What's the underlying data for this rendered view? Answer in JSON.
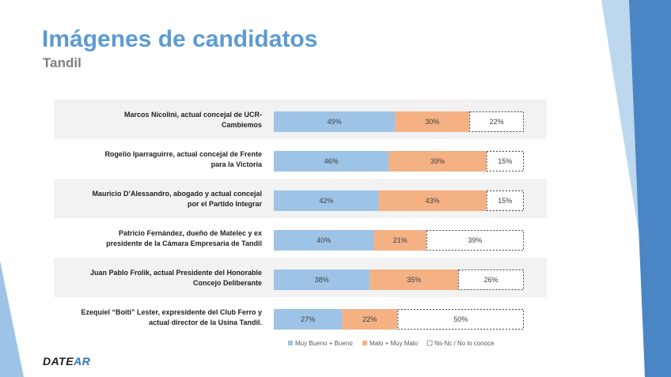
{
  "slide": {
    "title": "Imágenes de candidatos",
    "subtitle": "Tandil",
    "logo_main": "DATE",
    "logo_accent": "AR"
  },
  "colors": {
    "good": "#9dc3e6",
    "bad": "#f4b183",
    "nsnc_border": "#404040",
    "row_bg": "#f2f2f2",
    "title": "#5b9bd5",
    "deco_light": "#bdd7ee",
    "deco_mid": "#9dc3e6",
    "deco_dark": "#2e75b6"
  },
  "chart_data": {
    "type": "bar",
    "orientation": "horizontal",
    "stacked": true,
    "title": "Imágenes de candidatos",
    "subtitle": "Tandil",
    "categories": [
      [
        "Marcos Nicolini, actual concejal de UCR-",
        "Cambiemos"
      ],
      [
        "Rogelio Iparraguirre, actual concejal de Frente",
        "para la Victoria"
      ],
      [
        "Mauricio D’Alessandro, abogado y actual concejal",
        "por el Partido Integrar"
      ],
      [
        "Patricio Fernández, dueño de Matelec y ex",
        "presidente de la Cámara Empresaria de Tandil"
      ],
      [
        "Juan Pablo Frolik, actual Presidente del Honorable",
        "Concejo Deliberante"
      ],
      [
        "Ezequiel “Boiti” Lester, expresidente del Club Ferro y",
        "actual director de la Usina Tandil."
      ]
    ],
    "series": [
      {
        "name": "Muy Bueno + Bueno",
        "values": [
          49,
          46,
          42,
          40,
          38,
          27
        ]
      },
      {
        "name": "Malo + Muy Malo",
        "values": [
          30,
          39,
          43,
          21,
          35,
          22
        ]
      },
      {
        "name": "Ns-Nc /  No lo conoce",
        "values": [
          22,
          15,
          15,
          39,
          26,
          50
        ]
      }
    ],
    "value_suffix": "%",
    "legend_position": "bottom"
  }
}
